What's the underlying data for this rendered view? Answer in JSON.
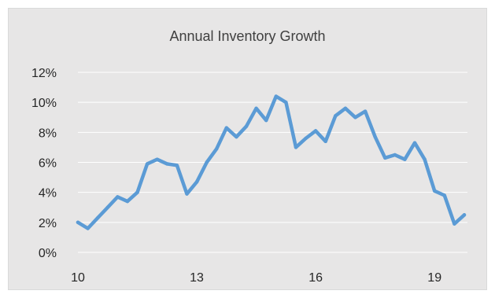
{
  "chart_data": {
    "type": "line",
    "title": "Annual Inventory Growth",
    "xlabel": "",
    "ylabel": "",
    "x_ticks": [
      10,
      13,
      16,
      19
    ],
    "y_ticks": [
      "0%",
      "2%",
      "4%",
      "6%",
      "8%",
      "10%",
      "12%"
    ],
    "xlim": [
      10,
      19.83
    ],
    "ylim": [
      0,
      12
    ],
    "grid": true,
    "legend": "none",
    "series": [
      {
        "color": "#5b9bd5",
        "x": [
          10.0,
          10.25,
          10.5,
          10.75,
          11.0,
          11.25,
          11.5,
          11.75,
          12.0,
          12.25,
          12.5,
          12.75,
          13.0,
          13.25,
          13.5,
          13.75,
          14.0,
          14.25,
          14.5,
          14.75,
          15.0,
          15.25,
          15.5,
          15.75,
          16.0,
          16.25,
          16.5,
          16.75,
          17.0,
          17.25,
          17.5,
          17.75,
          18.0,
          18.25,
          18.5,
          18.75,
          19.0,
          19.25,
          19.5,
          19.75
        ],
        "values": [
          2.0,
          1.6,
          2.3,
          3.0,
          3.7,
          3.4,
          4.0,
          5.9,
          6.2,
          5.9,
          5.8,
          3.9,
          4.7,
          6.0,
          6.9,
          8.3,
          7.7,
          8.4,
          9.6,
          8.8,
          10.4,
          10.0,
          7.0,
          7.6,
          8.1,
          7.4,
          9.1,
          9.6,
          9.0,
          9.4,
          7.7,
          6.3,
          6.5,
          6.2,
          7.3,
          6.2,
          4.1,
          3.8,
          1.9,
          2.5
        ]
      }
    ]
  }
}
